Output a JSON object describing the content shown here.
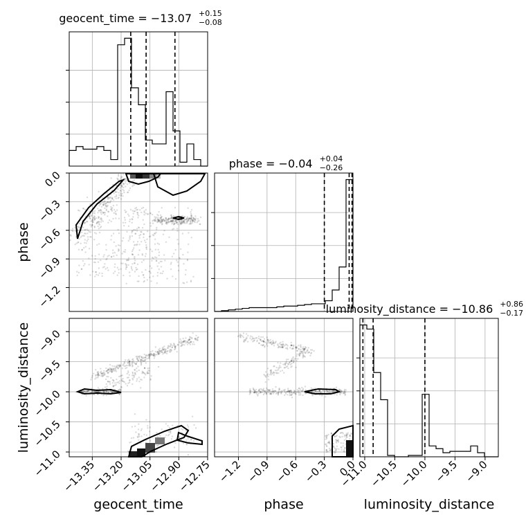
{
  "chart_data": {
    "type": "corner",
    "parameters": [
      "geocent_time",
      "phase",
      "luminosity_distance"
    ],
    "titles": [
      {
        "name": "geocent_time",
        "median": "−13.07",
        "plus": "+0.15",
        "minus": "−0.08"
      },
      {
        "name": "phase",
        "median": "−0.04",
        "plus": "+0.04",
        "minus": "−0.26"
      },
      {
        "name": "luminosity_distance",
        "median": "−10.86",
        "plus": "+0.86",
        "minus": "−0.17"
      }
    ],
    "ranges": {
      "geocent_time": [
        -13.47,
        -12.75
      ],
      "phase": [
        -1.45,
        0.0
      ],
      "luminosity_distance": [
        -11.08,
        -8.78
      ]
    },
    "ticks": {
      "geocent_time": {
        "values": [
          -13.35,
          -13.2,
          -13.05,
          -12.9,
          -12.75
        ],
        "labels": [
          "−13.35",
          "−13.20",
          "−13.05",
          "−12.90",
          "−12.75"
        ]
      },
      "phase": {
        "values": [
          -1.2,
          -0.9,
          -0.6,
          -0.3,
          0.0
        ],
        "labels": [
          "−1.2",
          "−0.9",
          "−0.6",
          "−0.3",
          "0.0"
        ]
      },
      "luminosity_distance": {
        "values": [
          -11.0,
          -10.5,
          -10.0,
          -9.5,
          -9.0
        ],
        "labels": [
          "−11.0",
          "−10.5",
          "−10.0",
          "−9.5",
          "−9.0"
        ]
      }
    },
    "histograms": {
      "geocent_time": {
        "edges": [
          -13.47,
          -13.434,
          -13.398,
          -13.362,
          -13.326,
          -13.29,
          -13.254,
          -13.218,
          -13.182,
          -13.146,
          -13.11,
          -13.074,
          -13.038,
          -13.002,
          -12.966,
          -12.93,
          -12.894,
          -12.858,
          -12.822,
          -12.786,
          -12.75
        ],
        "counts": [
          0.12,
          0.15,
          0.13,
          0.13,
          0.15,
          0.12,
          0.05,
          0.93,
          0.98,
          0.6,
          0.47,
          0.2,
          0.17,
          0.17,
          0.57,
          0.27,
          0.03,
          0.17,
          0.05,
          0.0
        ],
        "quantiles": [
          -13.15,
          -13.07,
          -12.92
        ]
      },
      "phase": {
        "edges": [
          -1.45,
          -1.3775,
          -1.305,
          -1.2325,
          -1.16,
          -1.0875,
          -1.015,
          -0.9425,
          -0.87,
          -0.7975,
          -0.725,
          -0.6525,
          -0.58,
          -0.5075,
          -0.435,
          -0.3625,
          -0.29,
          -0.2175,
          -0.145,
          -0.0725,
          0.0
        ],
        "counts": [
          0.0,
          0.005,
          0.01,
          0.015,
          0.02,
          0.025,
          0.025,
          0.025,
          0.025,
          0.03,
          0.035,
          0.035,
          0.04,
          0.045,
          0.05,
          0.05,
          0.07,
          0.14,
          0.29,
          0.86
        ],
        "quantiles": [
          -0.3,
          -0.04,
          -0.01
        ]
      },
      "luminosity_distance": {
        "edges": [
          -11.08,
          -10.965,
          -10.85,
          -10.735,
          -10.62,
          -10.505,
          -10.39,
          -10.275,
          -10.16,
          -10.045,
          -9.93,
          -9.815,
          -9.7,
          -9.585,
          -9.47,
          -9.355,
          -9.24,
          -9.125,
          -9.01,
          -8.895,
          -8.78
        ],
        "counts": [
          0.97,
          0.94,
          0.62,
          0.42,
          0.01,
          0.0,
          0.0,
          0.01,
          0.01,
          0.46,
          0.08,
          0.06,
          0.03,
          0.04,
          0.04,
          0.04,
          0.08,
          0.03,
          0.0,
          0.0
        ],
        "quantiles": [
          -11.03,
          -10.86,
          -10.0
        ]
      }
    },
    "grid": true
  }
}
